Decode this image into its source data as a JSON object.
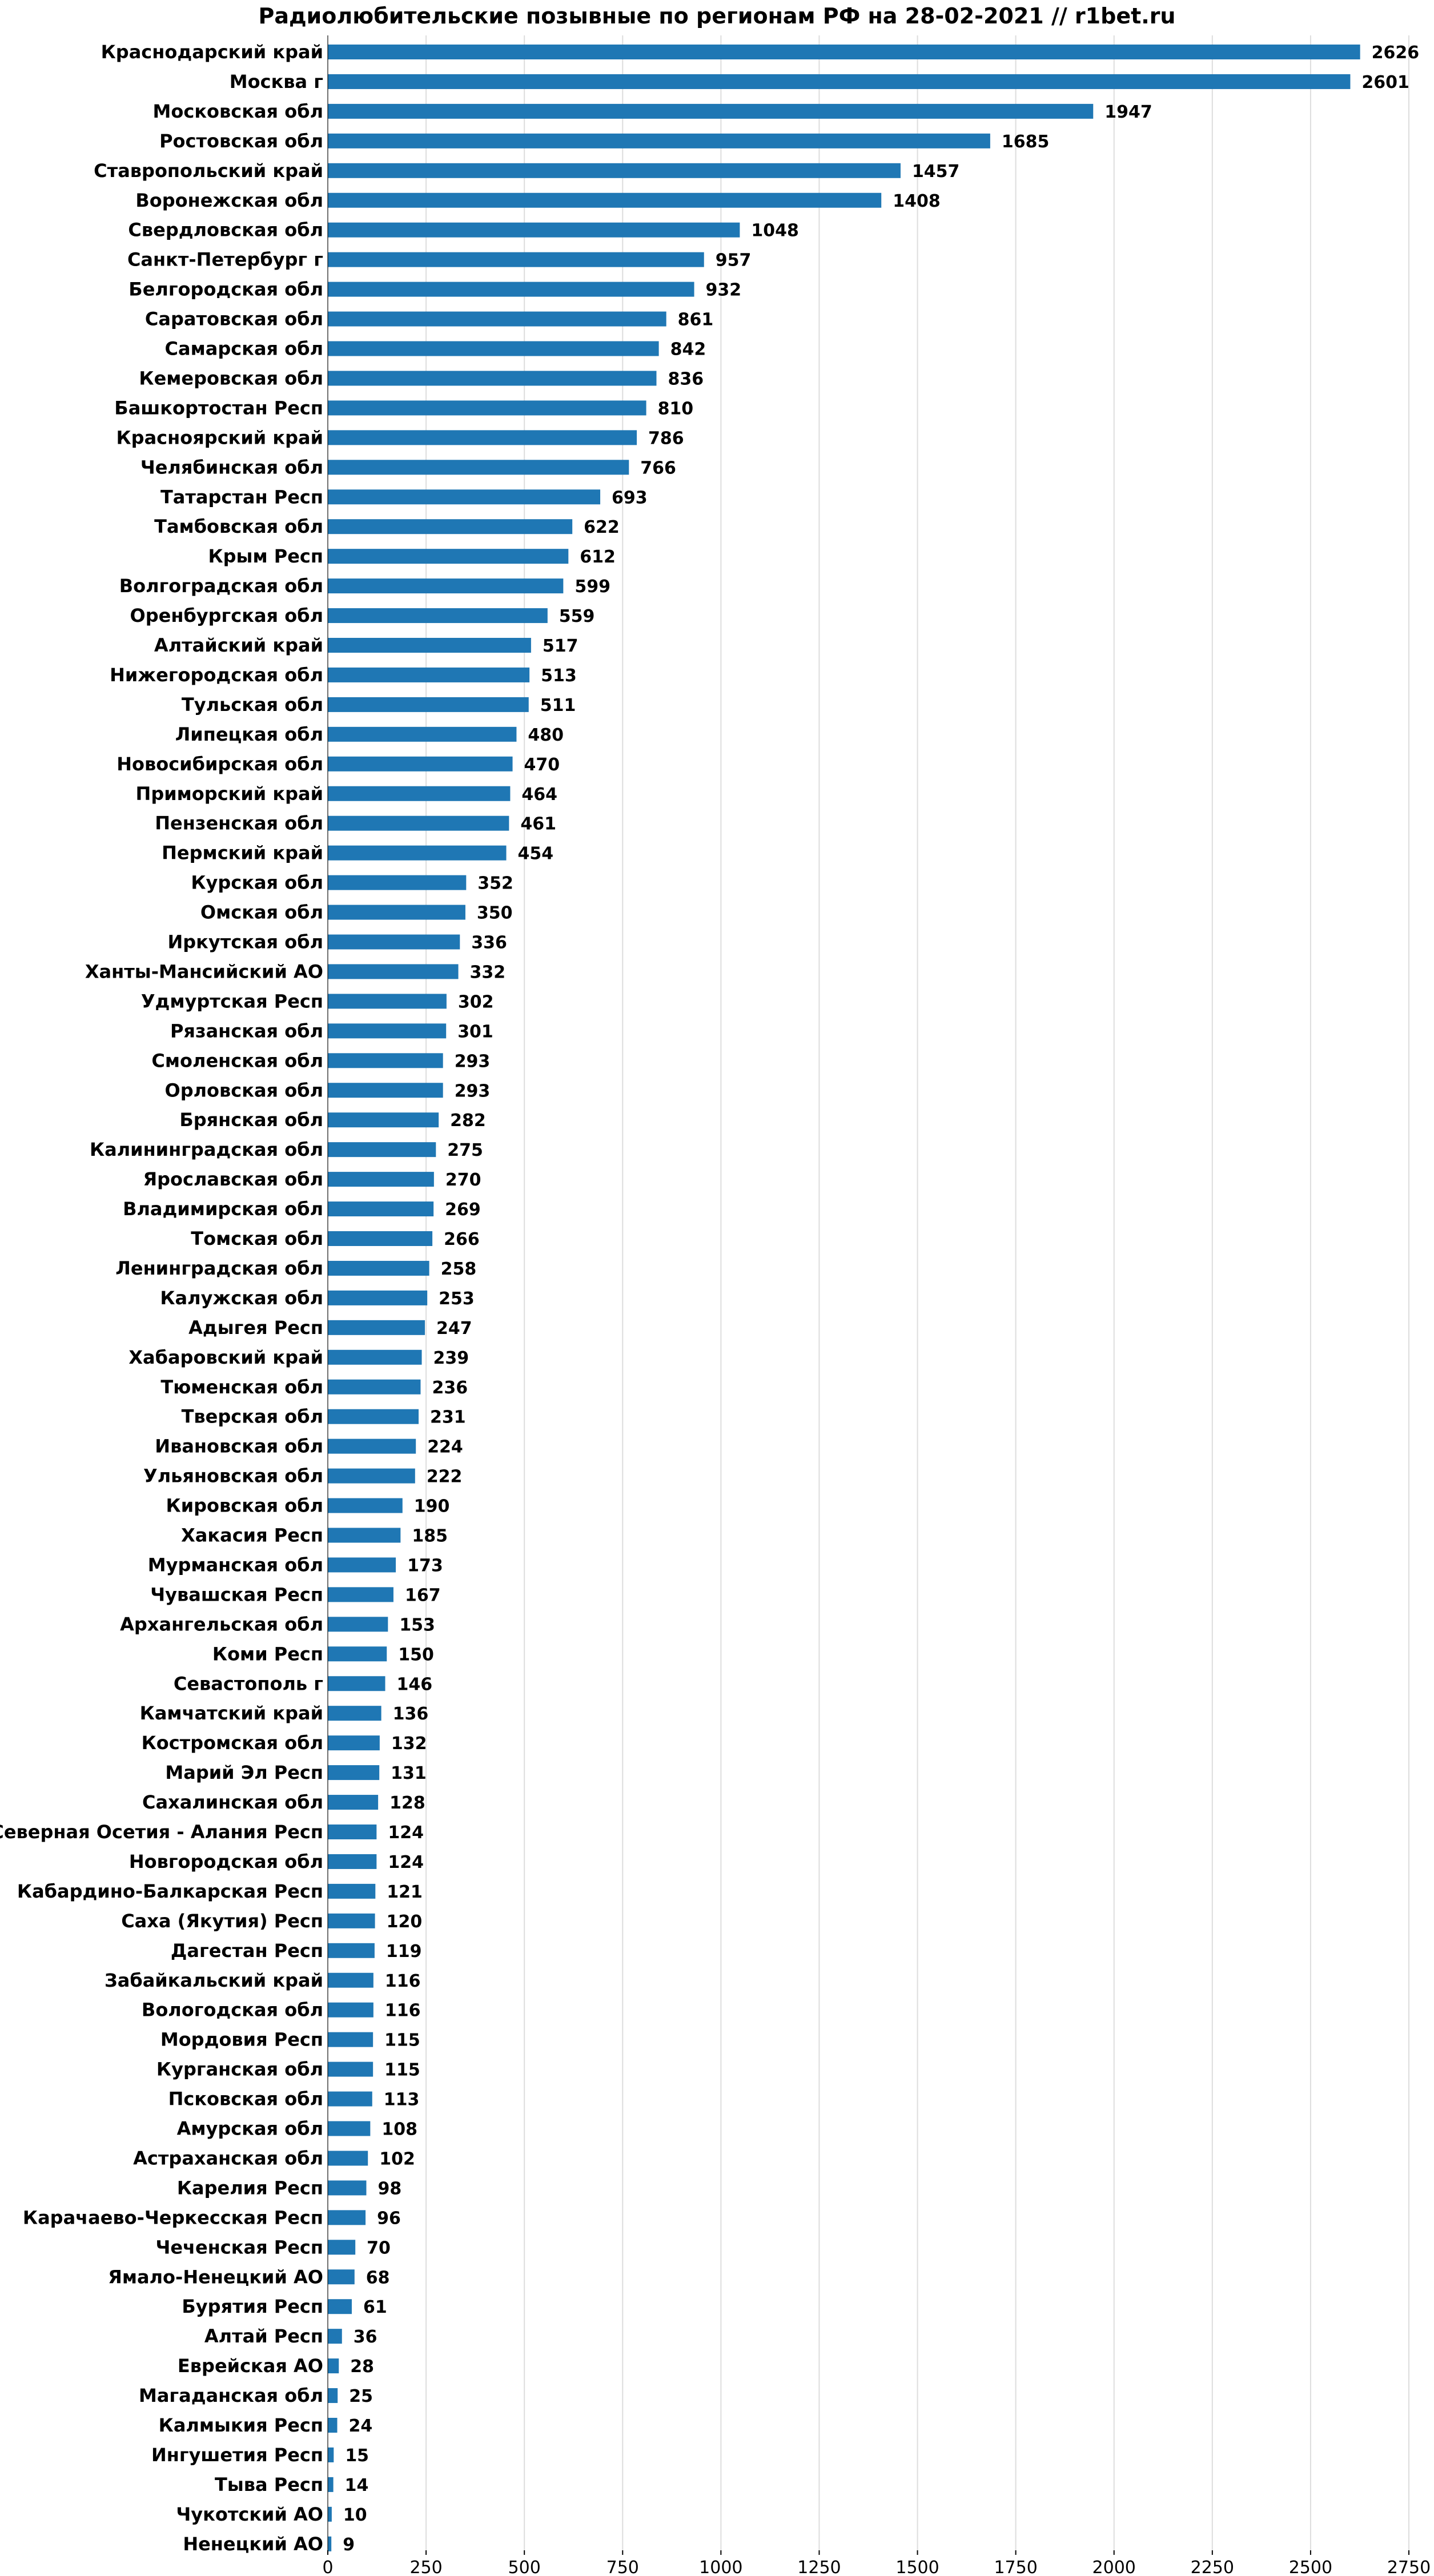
{
  "chart_data": {
    "type": "bar",
    "orientation": "horizontal",
    "title": "Радиолюбительские позывные по регионам РФ на 28-02-2021 // r1bet.ru",
    "xlabel": "",
    "ylabel": "",
    "xlim": [
      0,
      2750
    ],
    "x_ticks": [
      0,
      250,
      500,
      750,
      1000,
      1250,
      1500,
      1750,
      2000,
      2250,
      2500,
      2750
    ],
    "grid": "vertical",
    "bar_color": "#1f77b4",
    "categories": [
      "Краснодарский край",
      "Москва г",
      "Московская обл",
      "Ростовская обл",
      "Ставропольский край",
      "Воронежская обл",
      "Свердловская обл",
      "Санкт-Петербург г",
      "Белгородская обл",
      "Саратовская обл",
      "Самарская обл",
      "Кемеровская обл",
      "Башкортостан Респ",
      "Красноярский край",
      "Челябинская обл",
      "Татарстан Респ",
      "Тамбовская обл",
      "Крым Респ",
      "Волгоградская обл",
      "Оренбургская обл",
      "Алтайский край",
      "Нижегородская обл",
      "Тульская обл",
      "Липецкая обл",
      "Новосибирская обл",
      "Приморский край",
      "Пензенская обл",
      "Пермский край",
      "Курская обл",
      "Омская обл",
      "Иркутская обл",
      "Ханты-Мансийский АО",
      "Удмуртская Респ",
      "Рязанская обл",
      "Смоленская обл",
      "Орловская обл",
      "Брянская обл",
      "Калининградская обл",
      "Ярославская обл",
      "Владимирская обл",
      "Томская обл",
      "Ленинградская обл",
      "Калужская обл",
      "Адыгея Респ",
      "Хабаровский край",
      "Тюменская обл",
      "Тверская обл",
      "Ивановская обл",
      "Ульяновская обл",
      "Кировская обл",
      "Хакасия Респ",
      "Мурманская обл",
      "Чувашская Респ",
      "Архангельская обл",
      "Коми Респ",
      "Севастополь г",
      "Камчатский край",
      "Костромская обл",
      "Марий Эл Респ",
      "Сахалинская обл",
      "Северная Осетия - Алания Респ",
      "Новгородская обл",
      "Кабардино-Балкарская Респ",
      "Саха (Якутия) Респ",
      "Дагестан Респ",
      "Забайкальский край",
      "Вологодская обл",
      "Мордовия Респ",
      "Курганская обл",
      "Псковская обл",
      "Амурская обл",
      "Астраханская обл",
      "Карелия Респ",
      "Карачаево-Черкесская Респ",
      "Чеченская Респ",
      "Ямало-Ненецкий АО",
      "Бурятия Респ",
      "Алтай Респ",
      "Еврейская АО",
      "Магаданская обл",
      "Калмыкия Респ",
      "Ингушетия Респ",
      "Тыва Респ",
      "Чукотский АО",
      "Ненецкий АО"
    ],
    "values": [
      2626,
      2601,
      1947,
      1685,
      1457,
      1408,
      1048,
      957,
      932,
      861,
      842,
      836,
      810,
      786,
      766,
      693,
      622,
      612,
      599,
      559,
      517,
      513,
      511,
      480,
      470,
      464,
      461,
      454,
      352,
      350,
      336,
      332,
      302,
      301,
      293,
      293,
      282,
      275,
      270,
      269,
      266,
      258,
      253,
      247,
      239,
      236,
      231,
      224,
      222,
      190,
      185,
      173,
      167,
      153,
      150,
      146,
      136,
      132,
      131,
      128,
      124,
      124,
      121,
      120,
      119,
      116,
      116,
      115,
      115,
      113,
      108,
      102,
      98,
      96,
      70,
      68,
      61,
      36,
      28,
      25,
      24,
      15,
      14,
      10,
      9
    ]
  }
}
